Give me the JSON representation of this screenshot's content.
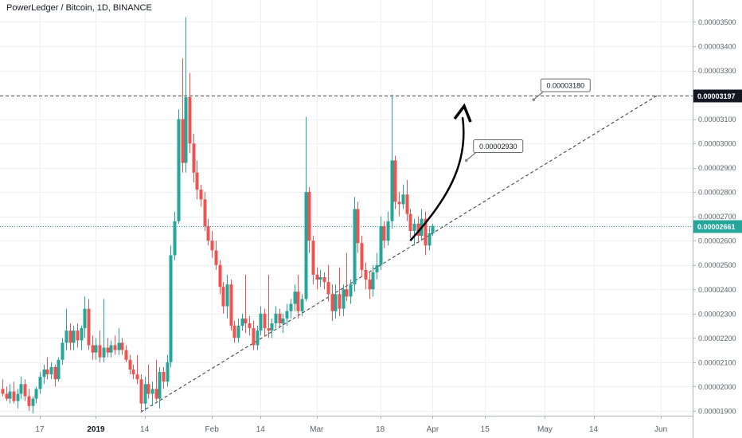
{
  "header": {
    "title": "PowerLedger / Bitcoin, 1D, BINANCE"
  },
  "colors": {
    "up": "#26a69a",
    "down": "#ef5350",
    "grid": "#eef0f3",
    "axis_text": "#5d606b",
    "last_price": "#26a69a",
    "resistance": "#555555",
    "trendline": "#333333"
  },
  "chart_data": {
    "type": "candlestick",
    "y_range": [
      1.88e-05,
      3.59e-05
    ],
    "x_range": [
      "2018-12-07",
      "2019-06-08"
    ],
    "y_ticks": [
      "0.00001900",
      "0.00002000",
      "0.00002100",
      "0.00002200",
      "0.00002300",
      "0.00002400",
      "0.00002500",
      "0.00002600",
      "0.00002700",
      "0.00002800",
      "0.00002900",
      "0.00003000",
      "0.00003100",
      "0.00003200",
      "0.00003300",
      "0.00003400",
      "0.00003500"
    ],
    "x_ticks": [
      {
        "date": "2018-12-17",
        "label": "17",
        "bold": false
      },
      {
        "date": "2019-01-01",
        "label": "2019",
        "bold": true
      },
      {
        "date": "2019-01-14",
        "label": "14",
        "bold": false
      },
      {
        "date": "2019-02-01",
        "label": "Feb",
        "bold": false
      },
      {
        "date": "2019-02-14",
        "label": "14",
        "bold": false
      },
      {
        "date": "2019-03-01",
        "label": "Mar",
        "bold": false
      },
      {
        "date": "2019-03-18",
        "label": "18",
        "bold": false
      },
      {
        "date": "2019-04-01",
        "label": "Apr",
        "bold": false
      },
      {
        "date": "2019-04-15",
        "label": "15",
        "bold": false
      },
      {
        "date": "2019-05-01",
        "label": "May",
        "bold": false
      },
      {
        "date": "2019-05-14",
        "label": "14",
        "bold": false
      },
      {
        "date": "2019-06-01",
        "label": "Jun",
        "bold": false
      }
    ],
    "candles": [
      {
        "date": "2018-12-07",
        "o": 1.99e-05,
        "h": 2.03e-05,
        "l": 1.96e-05,
        "c": 1.97e-05
      },
      {
        "date": "2018-12-08",
        "o": 1.97e-05,
        "h": 2e-05,
        "l": 1.94e-05,
        "c": 1.95e-05
      },
      {
        "date": "2018-12-09",
        "o": 1.95e-05,
        "h": 2.01e-05,
        "l": 1.93e-05,
        "c": 1.98e-05
      },
      {
        "date": "2018-12-10",
        "o": 1.98e-05,
        "h": 2.02e-05,
        "l": 1.93e-05,
        "c": 1.94e-05
      },
      {
        "date": "2018-12-11",
        "o": 1.94e-05,
        "h": 1.99e-05,
        "l": 1.91e-05,
        "c": 1.97e-05
      },
      {
        "date": "2018-12-12",
        "o": 1.97e-05,
        "h": 2.04e-05,
        "l": 1.95e-05,
        "c": 2.01e-05
      },
      {
        "date": "2018-12-13",
        "o": 2.01e-05,
        "h": 2.03e-05,
        "l": 1.94e-05,
        "c": 1.96e-05
      },
      {
        "date": "2018-12-14",
        "o": 1.96e-05,
        "h": 1.99e-05,
        "l": 1.9e-05,
        "c": 1.92e-05
      },
      {
        "date": "2018-12-15",
        "o": 1.92e-05,
        "h": 1.96e-05,
        "l": 1.89e-05,
        "c": 1.95e-05
      },
      {
        "date": "2018-12-16",
        "o": 1.95e-05,
        "h": 2e-05,
        "l": 1.93e-05,
        "c": 1.99e-05
      },
      {
        "date": "2018-12-17",
        "o": 1.99e-05,
        "h": 2.06e-05,
        "l": 1.97e-05,
        "c": 2.04e-05
      },
      {
        "date": "2018-12-18",
        "o": 2.04e-05,
        "h": 2.09e-05,
        "l": 2.01e-05,
        "c": 2.07e-05
      },
      {
        "date": "2018-12-19",
        "o": 2.07e-05,
        "h": 2.12e-05,
        "l": 2.03e-05,
        "c": 2.05e-05
      },
      {
        "date": "2018-12-20",
        "o": 2.05e-05,
        "h": 2.1e-05,
        "l": 2.03e-05,
        "c": 2.08e-05
      },
      {
        "date": "2018-12-21",
        "o": 2.08e-05,
        "h": 2.09e-05,
        "l": 2e-05,
        "c": 2.03e-05
      },
      {
        "date": "2018-12-22",
        "o": 2.03e-05,
        "h": 2.12e-05,
        "l": 2.02e-05,
        "c": 2.11e-05
      },
      {
        "date": "2018-12-23",
        "o": 2.11e-05,
        "h": 2.2e-05,
        "l": 2.09e-05,
        "c": 2.18e-05
      },
      {
        "date": "2018-12-24",
        "o": 2.18e-05,
        "h": 2.32e-05,
        "l": 2.15e-05,
        "c": 2.23e-05
      },
      {
        "date": "2018-12-25",
        "o": 2.23e-05,
        "h": 2.26e-05,
        "l": 2.15e-05,
        "c": 2.18e-05
      },
      {
        "date": "2018-12-26",
        "o": 2.18e-05,
        "h": 2.25e-05,
        "l": 2.15e-05,
        "c": 2.23e-05
      },
      {
        "date": "2018-12-27",
        "o": 2.23e-05,
        "h": 2.26e-05,
        "l": 2.16e-05,
        "c": 2.19e-05
      },
      {
        "date": "2018-12-28",
        "o": 2.19e-05,
        "h": 2.25e-05,
        "l": 2.15e-05,
        "c": 2.24e-05
      },
      {
        "date": "2018-12-29",
        "o": 2.24e-05,
        "h": 2.37e-05,
        "l": 2.2e-05,
        "c": 2.32e-05
      },
      {
        "date": "2018-12-30",
        "o": 2.32e-05,
        "h": 2.36e-05,
        "l": 2.15e-05,
        "c": 2.17e-05
      },
      {
        "date": "2018-12-31",
        "o": 2.17e-05,
        "h": 2.21e-05,
        "l": 2.11e-05,
        "c": 2.14e-05
      },
      {
        "date": "2019-01-01",
        "o": 2.14e-05,
        "h": 2.2e-05,
        "l": 2.11e-05,
        "c": 2.17e-05
      },
      {
        "date": "2019-01-02",
        "o": 2.17e-05,
        "h": 2.23e-05,
        "l": 2.1e-05,
        "c": 2.12e-05
      },
      {
        "date": "2019-01-03",
        "o": 2.12e-05,
        "h": 2.36e-05,
        "l": 2.1e-05,
        "c": 2.16e-05
      },
      {
        "date": "2019-01-04",
        "o": 2.16e-05,
        "h": 2.2e-05,
        "l": 2.12e-05,
        "c": 2.14e-05
      },
      {
        "date": "2019-01-05",
        "o": 2.14e-05,
        "h": 2.19e-05,
        "l": 2.12e-05,
        "c": 2.17e-05
      },
      {
        "date": "2019-01-06",
        "o": 2.17e-05,
        "h": 2.21e-05,
        "l": 2.13e-05,
        "c": 2.15e-05
      },
      {
        "date": "2019-01-07",
        "o": 2.15e-05,
        "h": 2.24e-05,
        "l": 2.13e-05,
        "c": 2.18e-05
      },
      {
        "date": "2019-01-08",
        "o": 2.18e-05,
        "h": 2.2e-05,
        "l": 2.13e-05,
        "c": 2.15e-05
      },
      {
        "date": "2019-01-09",
        "o": 2.15e-05,
        "h": 2.17e-05,
        "l": 2.1e-05,
        "c": 2.11e-05
      },
      {
        "date": "2019-01-10",
        "o": 2.11e-05,
        "h": 2.13e-05,
        "l": 2.05e-05,
        "c": 2.07e-05
      },
      {
        "date": "2019-01-11",
        "o": 2.07e-05,
        "h": 2.09e-05,
        "l": 2.03e-05,
        "c": 2.05e-05
      },
      {
        "date": "2019-01-12",
        "o": 2.05e-05,
        "h": 2.13e-05,
        "l": 2.01e-05,
        "c": 2.03e-05
      },
      {
        "date": "2019-01-13",
        "o": 2.03e-05,
        "h": 2.05e-05,
        "l": 1.9e-05,
        "c": 1.93e-05
      },
      {
        "date": "2019-01-14",
        "o": 1.93e-05,
        "h": 2.04e-05,
        "l": 1.9e-05,
        "c": 2.01e-05
      },
      {
        "date": "2019-01-15",
        "o": 2.01e-05,
        "h": 2.09e-05,
        "l": 1.95e-05,
        "c": 1.97e-05
      },
      {
        "date": "2019-01-16",
        "o": 1.97e-05,
        "h": 2.02e-05,
        "l": 1.92e-05,
        "c": 1.99e-05
      },
      {
        "date": "2019-01-17",
        "o": 1.99e-05,
        "h": 2.11e-05,
        "l": 1.94e-05,
        "c": 1.95e-05
      },
      {
        "date": "2019-01-18",
        "o": 1.95e-05,
        "h": 2.08e-05,
        "l": 1.91e-05,
        "c": 2.06e-05
      },
      {
        "date": "2019-01-19",
        "o": 2.06e-05,
        "h": 2.08e-05,
        "l": 1.99e-05,
        "c": 2.02e-05
      },
      {
        "date": "2019-01-20",
        "o": 2.02e-05,
        "h": 2.13e-05,
        "l": 2e-05,
        "c": 2.1e-05
      },
      {
        "date": "2019-01-21",
        "o": 2.1e-05,
        "h": 2.58e-05,
        "l": 2.08e-05,
        "c": 2.54e-05
      },
      {
        "date": "2019-01-22",
        "o": 2.54e-05,
        "h": 2.72e-05,
        "l": 2.52e-05,
        "c": 2.68e-05
      },
      {
        "date": "2019-01-23",
        "o": 2.68e-05,
        "h": 3.14e-05,
        "l": 2.67e-05,
        "c": 3.1e-05
      },
      {
        "date": "2019-01-24",
        "o": 3.1e-05,
        "h": 3.35e-05,
        "l": 2.88e-05,
        "c": 2.92e-05
      },
      {
        "date": "2019-01-25",
        "o": 2.92e-05,
        "h": 3.52e-05,
        "l": 2.88e-05,
        "c": 3.19e-05
      },
      {
        "date": "2019-01-26",
        "o": 3.19e-05,
        "h": 3.29e-05,
        "l": 2.96e-05,
        "c": 3e-05
      },
      {
        "date": "2019-01-27",
        "o": 3e-05,
        "h": 3.04e-05,
        "l": 2.84e-05,
        "c": 2.88e-05
      },
      {
        "date": "2019-01-28",
        "o": 2.88e-05,
        "h": 2.93e-05,
        "l": 2.77e-05,
        "c": 2.81e-05
      },
      {
        "date": "2019-01-29",
        "o": 2.81e-05,
        "h": 2.83e-05,
        "l": 2.74e-05,
        "c": 2.77e-05
      },
      {
        "date": "2019-01-30",
        "o": 2.77e-05,
        "h": 2.8e-05,
        "l": 2.64e-05,
        "c": 2.66e-05
      },
      {
        "date": "2019-01-31",
        "o": 2.66e-05,
        "h": 2.69e-05,
        "l": 2.58e-05,
        "c": 2.6e-05
      },
      {
        "date": "2019-02-01",
        "o": 2.6e-05,
        "h": 2.64e-05,
        "l": 2.53e-05,
        "c": 2.56e-05
      },
      {
        "date": "2019-02-02",
        "o": 2.56e-05,
        "h": 2.6e-05,
        "l": 2.48e-05,
        "c": 2.5e-05
      },
      {
        "date": "2019-02-03",
        "o": 2.5e-05,
        "h": 2.52e-05,
        "l": 2.38e-05,
        "c": 2.41e-05
      },
      {
        "date": "2019-02-04",
        "o": 2.41e-05,
        "h": 2.43e-05,
        "l": 2.3e-05,
        "c": 2.33e-05
      },
      {
        "date": "2019-02-05",
        "o": 2.33e-05,
        "h": 2.46e-05,
        "l": 2.28e-05,
        "c": 2.42e-05
      },
      {
        "date": "2019-02-06",
        "o": 2.42e-05,
        "h": 2.44e-05,
        "l": 2.23e-05,
        "c": 2.25e-05
      },
      {
        "date": "2019-02-07",
        "o": 2.25e-05,
        "h": 2.27e-05,
        "l": 2.18e-05,
        "c": 2.2e-05
      },
      {
        "date": "2019-02-08",
        "o": 2.2e-05,
        "h": 2.28e-05,
        "l": 2.18e-05,
        "c": 2.25e-05
      },
      {
        "date": "2019-02-09",
        "o": 2.25e-05,
        "h": 2.3e-05,
        "l": 2.23e-05,
        "c": 2.28e-05
      },
      {
        "date": "2019-02-10",
        "o": 2.28e-05,
        "h": 2.46e-05,
        "l": 2.22e-05,
        "c": 2.26e-05
      },
      {
        "date": "2019-02-11",
        "o": 2.26e-05,
        "h": 2.29e-05,
        "l": 2.21e-05,
        "c": 2.24e-05
      },
      {
        "date": "2019-02-12",
        "o": 2.24e-05,
        "h": 2.27e-05,
        "l": 2.15e-05,
        "c": 2.17e-05
      },
      {
        "date": "2019-02-13",
        "o": 2.17e-05,
        "h": 2.25e-05,
        "l": 2.15e-05,
        "c": 2.23e-05
      },
      {
        "date": "2019-02-14",
        "o": 2.23e-05,
        "h": 2.33e-05,
        "l": 2.21e-05,
        "c": 2.3e-05
      },
      {
        "date": "2019-02-15",
        "o": 2.3e-05,
        "h": 2.32e-05,
        "l": 2.21e-05,
        "c": 2.24e-05
      },
      {
        "date": "2019-02-16",
        "o": 2.24e-05,
        "h": 2.46e-05,
        "l": 2.2e-05,
        "c": 2.23e-05
      },
      {
        "date": "2019-02-17",
        "o": 2.23e-05,
        "h": 2.28e-05,
        "l": 2.2e-05,
        "c": 2.26e-05
      },
      {
        "date": "2019-02-18",
        "o": 2.26e-05,
        "h": 2.33e-05,
        "l": 2.24e-05,
        "c": 2.3e-05
      },
      {
        "date": "2019-02-19",
        "o": 2.3e-05,
        "h": 2.32e-05,
        "l": 2.24e-05,
        "c": 2.26e-05
      },
      {
        "date": "2019-02-20",
        "o": 2.26e-05,
        "h": 2.3e-05,
        "l": 2.22e-05,
        "c": 2.28e-05
      },
      {
        "date": "2019-02-21",
        "o": 2.28e-05,
        "h": 2.34e-05,
        "l": 2.25e-05,
        "c": 2.31e-05
      },
      {
        "date": "2019-02-22",
        "o": 2.31e-05,
        "h": 2.36e-05,
        "l": 2.28e-05,
        "c": 2.34e-05
      },
      {
        "date": "2019-02-23",
        "o": 2.34e-05,
        "h": 2.42e-05,
        "l": 2.31e-05,
        "c": 2.39e-05
      },
      {
        "date": "2019-02-24",
        "o": 2.39e-05,
        "h": 2.46e-05,
        "l": 2.28e-05,
        "c": 2.31e-05
      },
      {
        "date": "2019-02-25",
        "o": 2.31e-05,
        "h": 2.38e-05,
        "l": 2.29e-05,
        "c": 2.36e-05
      },
      {
        "date": "2019-02-26",
        "o": 2.36e-05,
        "h": 3.11e-05,
        "l": 2.35e-05,
        "c": 2.8e-05
      },
      {
        "date": "2019-02-27",
        "o": 2.8e-05,
        "h": 2.82e-05,
        "l": 2.55e-05,
        "c": 2.6e-05
      },
      {
        "date": "2019-02-28",
        "o": 2.6e-05,
        "h": 2.62e-05,
        "l": 2.42e-05,
        "c": 2.46e-05
      },
      {
        "date": "2019-03-01",
        "o": 2.46e-05,
        "h": 2.49e-05,
        "l": 2.4e-05,
        "c": 2.44e-05
      },
      {
        "date": "2019-03-02",
        "o": 2.44e-05,
        "h": 2.48e-05,
        "l": 2.41e-05,
        "c": 2.45e-05
      },
      {
        "date": "2019-03-03",
        "o": 2.45e-05,
        "h": 2.47e-05,
        "l": 2.4e-05,
        "c": 2.43e-05
      },
      {
        "date": "2019-03-04",
        "o": 2.43e-05,
        "h": 2.5e-05,
        "l": 2.35e-05,
        "c": 2.38e-05
      },
      {
        "date": "2019-03-05",
        "o": 2.38e-05,
        "h": 2.42e-05,
        "l": 2.27e-05,
        "c": 2.31e-05
      },
      {
        "date": "2019-03-06",
        "o": 2.31e-05,
        "h": 2.42e-05,
        "l": 2.28e-05,
        "c": 2.38e-05
      },
      {
        "date": "2019-03-07",
        "o": 2.38e-05,
        "h": 2.49e-05,
        "l": 2.29e-05,
        "c": 2.32e-05
      },
      {
        "date": "2019-03-08",
        "o": 2.32e-05,
        "h": 2.42e-05,
        "l": 2.29e-05,
        "c": 2.4e-05
      },
      {
        "date": "2019-03-09",
        "o": 2.4e-05,
        "h": 2.55e-05,
        "l": 2.35e-05,
        "c": 2.37e-05
      },
      {
        "date": "2019-03-10",
        "o": 2.37e-05,
        "h": 2.44e-05,
        "l": 2.34e-05,
        "c": 2.42e-05
      },
      {
        "date": "2019-03-11",
        "o": 2.42e-05,
        "h": 2.78e-05,
        "l": 2.39e-05,
        "c": 2.73e-05
      },
      {
        "date": "2019-03-12",
        "o": 2.73e-05,
        "h": 2.76e-05,
        "l": 2.55e-05,
        "c": 2.59e-05
      },
      {
        "date": "2019-03-13",
        "o": 2.59e-05,
        "h": 2.62e-05,
        "l": 2.45e-05,
        "c": 2.48e-05
      },
      {
        "date": "2019-03-14",
        "o": 2.48e-05,
        "h": 2.51e-05,
        "l": 2.4e-05,
        "c": 2.44e-05
      },
      {
        "date": "2019-03-15",
        "o": 2.44e-05,
        "h": 2.47e-05,
        "l": 2.36e-05,
        "c": 2.4e-05
      },
      {
        "date": "2019-03-16",
        "o": 2.4e-05,
        "h": 2.5e-05,
        "l": 2.37e-05,
        "c": 2.47e-05
      },
      {
        "date": "2019-03-17",
        "o": 2.47e-05,
        "h": 2.55e-05,
        "l": 2.44e-05,
        "c": 2.5e-05
      },
      {
        "date": "2019-03-18",
        "o": 2.5e-05,
        "h": 2.7e-05,
        "l": 2.48e-05,
        "c": 2.66e-05
      },
      {
        "date": "2019-03-19",
        "o": 2.66e-05,
        "h": 2.68e-05,
        "l": 2.57e-05,
        "c": 2.6e-05
      },
      {
        "date": "2019-03-20",
        "o": 2.6e-05,
        "h": 2.72e-05,
        "l": 2.58e-05,
        "c": 2.68e-05
      },
      {
        "date": "2019-03-21",
        "o": 2.68e-05,
        "h": 3.2e-05,
        "l": 2.65e-05,
        "c": 2.93e-05
      },
      {
        "date": "2019-03-22",
        "o": 2.93e-05,
        "h": 2.95e-05,
        "l": 2.73e-05,
        "c": 2.76e-05
      },
      {
        "date": "2019-03-23",
        "o": 2.76e-05,
        "h": 2.8e-05,
        "l": 2.7e-05,
        "c": 2.75e-05
      },
      {
        "date": "2019-03-24",
        "o": 2.75e-05,
        "h": 2.83e-05,
        "l": 2.73e-05,
        "c": 2.79e-05
      },
      {
        "date": "2019-03-25",
        "o": 2.79e-05,
        "h": 2.85e-05,
        "l": 2.68e-05,
        "c": 2.71e-05
      },
      {
        "date": "2019-03-26",
        "o": 2.71e-05,
        "h": 2.73e-05,
        "l": 2.61e-05,
        "c": 2.64e-05
      },
      {
        "date": "2019-03-27",
        "o": 2.64e-05,
        "h": 2.69e-05,
        "l": 2.58e-05,
        "c": 2.67e-05
      },
      {
        "date": "2019-03-28",
        "o": 2.67e-05,
        "h": 2.7e-05,
        "l": 2.59e-05,
        "c": 2.62e-05
      },
      {
        "date": "2019-03-29",
        "o": 2.62e-05,
        "h": 2.73e-05,
        "l": 2.6e-05,
        "c": 2.69e-05
      },
      {
        "date": "2019-03-30",
        "o": 2.69e-05,
        "h": 2.72e-05,
        "l": 2.54e-05,
        "c": 2.58e-05
      },
      {
        "date": "2019-03-31",
        "o": 2.58e-05,
        "h": 2.66e-05,
        "l": 2.56e-05,
        "c": 2.63e-05
      },
      {
        "date": "2019-04-01",
        "o": 2.63e-05,
        "h": 2.67e-05,
        "l": 2.62e-05,
        "c": 2.661e-05
      }
    ]
  },
  "annotations": {
    "resistance_price": 3.197e-05,
    "resistance_label": "0.00003197",
    "last_price": 2.661e-05,
    "last_price_label": "0.00002661",
    "trendline": {
      "start": {
        "date": "2019-01-13",
        "price": 1.895e-05
      },
      "end": {
        "date": "2019-05-31",
        "price": 3.197e-05
      }
    },
    "callouts": [
      {
        "text": "0.00003180",
        "date": "2019-04-28",
        "price": 3.18e-05
      },
      {
        "text": "0.00002930",
        "date": "2019-04-10",
        "price": 2.93e-05
      }
    ],
    "projection_arrow": {
      "start": {
        "date": "2019-03-26",
        "price": 2.6e-05
      },
      "end": {
        "date": "2019-04-09",
        "price": 3.18e-05
      }
    }
  }
}
